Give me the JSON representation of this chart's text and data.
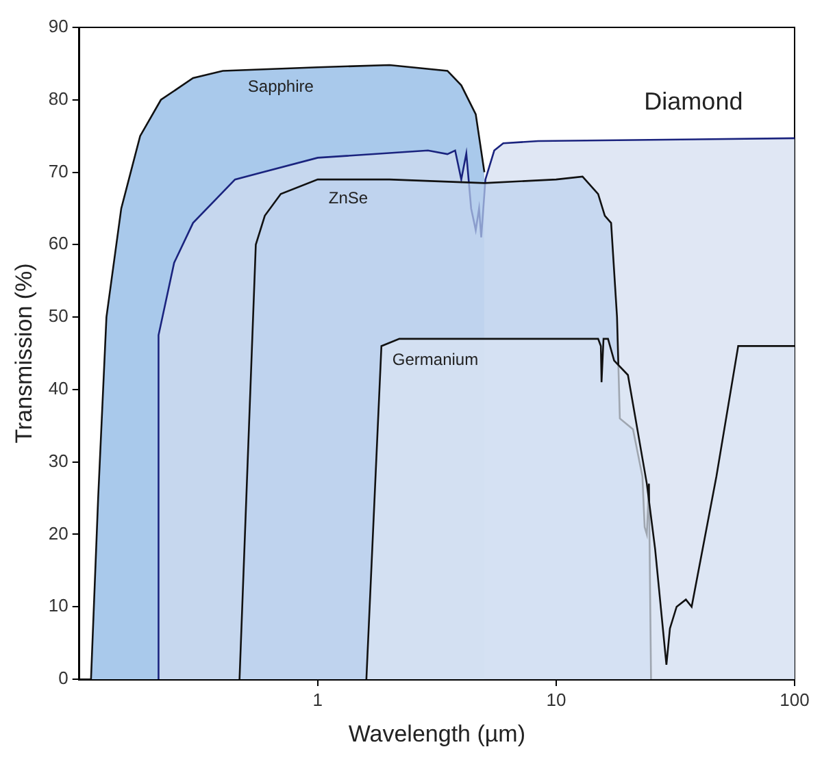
{
  "chart_data": {
    "type": "area",
    "xlabel": "Wavelength (µm)",
    "ylabel": "Transmission (%)",
    "log": "x",
    "xlim": [
      0.1,
      100
    ],
    "xticks": [
      1,
      10,
      100
    ],
    "ylim": [
      0,
      90
    ],
    "yticks": [
      0,
      10,
      20,
      30,
      40,
      50,
      60,
      70,
      80,
      90
    ],
    "grid": false,
    "legend": false,
    "marker": "none",
    "series": [
      {
        "name": "Sapphire",
        "color": "#a9c9eb",
        "x": [
          0.112,
          0.12,
          0.13,
          0.15,
          0.18,
          0.22,
          0.3,
          0.4,
          1,
          2,
          3.5,
          4,
          4.6,
          5
        ],
        "values": [
          0,
          25,
          50,
          65,
          75,
          80,
          83,
          84,
          84.5,
          84.8,
          84,
          82,
          78,
          70
        ]
      },
      {
        "name": "Diamond",
        "color": "#d3ddef",
        "x": [
          0.214,
          0.215,
          0.25,
          0.3,
          0.45,
          1,
          2.9,
          3.5,
          3.77,
          4,
          4.2,
          4.4,
          4.6,
          4.75,
          4.85,
          5.05,
          5.5,
          6,
          8.4,
          100
        ],
        "values": [
          0,
          47.5,
          57.5,
          63,
          69,
          72,
          73,
          72.5,
          73,
          69,
          72.6,
          65,
          62,
          65,
          61,
          69,
          73,
          74,
          74.3,
          74.7
        ]
      },
      {
        "name": "ZnSe",
        "color": "#bcd2ee",
        "x": [
          0.47,
          0.55,
          0.6,
          0.7,
          1,
          2,
          5,
          10,
          12.9,
          15,
          16,
          17,
          18,
          18.5,
          21,
          23,
          23.5,
          24,
          24.5,
          25
        ],
        "values": [
          0,
          60,
          64,
          67,
          69,
          69,
          68.5,
          69,
          69.4,
          67,
          64,
          63,
          50,
          36,
          34.5,
          28,
          21,
          20,
          27,
          0
        ]
      },
      {
        "name": "Germanium",
        "color": "#dbe5f4",
        "x": [
          1.6,
          1.85,
          2.2,
          10,
          15,
          15.4,
          15.5,
          15.8,
          16.5,
          17.5,
          20,
          24,
          26,
          29,
          30,
          32,
          35,
          37,
          47,
          58,
          100
        ],
        "values": [
          0,
          46,
          47,
          47,
          47,
          46,
          41,
          47,
          47,
          44,
          42,
          27,
          18,
          2,
          7,
          10,
          11,
          10,
          28,
          46,
          46
        ]
      }
    ]
  }
}
